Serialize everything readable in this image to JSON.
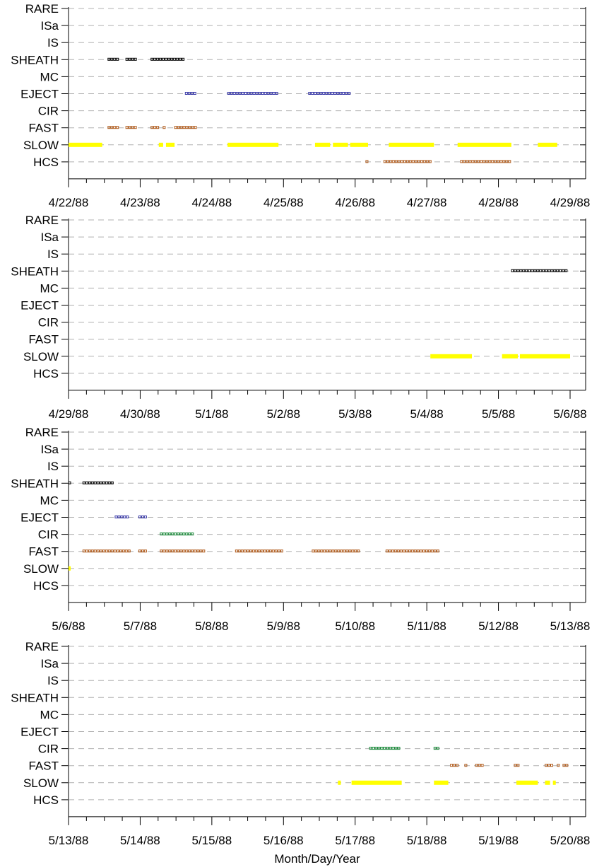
{
  "xlabel": "Month/Day/Year",
  "colors": {
    "SHEATH": "#000000",
    "EJECT": "#3a3aa8",
    "CIR": "#1a8a3a",
    "FAST": "#b05a1a",
    "SLOW": "#ffff00",
    "HCS": "#b05a1a",
    "grid": "#b0b0b0"
  },
  "chart_data": [
    {
      "type": "timeline",
      "categories": [
        "RARE",
        "ISa",
        "IS",
        "SHEATH",
        "MC",
        "EJECT",
        "CIR",
        "FAST",
        "SLOW",
        "HCS"
      ],
      "x_tick_labels": [
        "4/22/88",
        "4/23/88",
        "4/24/88",
        "4/25/88",
        "4/26/88",
        "4/27/88",
        "4/28/88",
        "4/29/88"
      ],
      "xlim_days": [
        0,
        7
      ],
      "events": [
        {
          "category": "SHEATH",
          "intervals": [
            [
              0.55,
              0.72
            ],
            [
              0.8,
              0.97
            ],
            [
              1.15,
              1.65
            ]
          ]
        },
        {
          "category": "EJECT",
          "intervals": [
            [
              1.63,
              1.81
            ],
            [
              2.22,
              2.93
            ],
            [
              3.35,
              3.98
            ]
          ]
        },
        {
          "category": "FAST",
          "intervals": [
            [
              0.55,
              0.72
            ],
            [
              0.8,
              0.97
            ],
            [
              1.15,
              1.28
            ],
            [
              1.32,
              1.37
            ],
            [
              1.48,
              1.81
            ]
          ]
        },
        {
          "category": "SLOW",
          "intervals": [
            [
              0.0,
              0.47
            ],
            [
              1.26,
              1.32
            ],
            [
              1.36,
              1.48
            ],
            [
              2.22,
              2.93
            ],
            [
              3.44,
              3.65
            ],
            [
              3.69,
              3.9
            ],
            [
              3.93,
              4.18
            ],
            [
              4.47,
              5.1
            ],
            [
              5.43,
              6.18
            ],
            [
              6.55,
              6.82
            ]
          ]
        },
        {
          "category": "HCS",
          "intervals": [
            [
              4.15,
              4.2
            ],
            [
              4.4,
              5.1
            ],
            [
              5.47,
              6.18
            ]
          ]
        }
      ]
    },
    {
      "type": "timeline",
      "categories": [
        "RARE",
        "ISa",
        "IS",
        "SHEATH",
        "MC",
        "EJECT",
        "CIR",
        "FAST",
        "SLOW",
        "HCS"
      ],
      "x_tick_labels": [
        "4/29/88",
        "4/30/88",
        "5/1/88",
        "5/2/88",
        "5/3/88",
        "5/4/88",
        "5/5/88",
        "5/6/88"
      ],
      "xlim_days": [
        0,
        7
      ],
      "events": [
        {
          "category": "SHEATH",
          "intervals": [
            [
              6.18,
              7.0
            ]
          ]
        },
        {
          "category": "SLOW",
          "intervals": [
            [
              5.05,
              5.63
            ],
            [
              6.05,
              6.27
            ],
            [
              6.3,
              7.0
            ]
          ]
        }
      ]
    },
    {
      "type": "timeline",
      "categories": [
        "RARE",
        "ISa",
        "IS",
        "SHEATH",
        "MC",
        "EJECT",
        "CIR",
        "FAST",
        "SLOW",
        "HCS"
      ],
      "x_tick_labels": [
        "5/6/88",
        "5/7/88",
        "5/8/88",
        "5/9/88",
        "5/10/88",
        "5/11/88",
        "5/12/88",
        "5/13/88"
      ],
      "xlim_days": [
        0,
        7
      ],
      "events": [
        {
          "category": "SHEATH",
          "intervals": [
            [
              0.0,
              0.02
            ],
            [
              0.2,
              0.64
            ]
          ]
        },
        {
          "category": "EJECT",
          "intervals": [
            [
              0.65,
              0.88
            ],
            [
              0.98,
              1.13
            ]
          ]
        },
        {
          "category": "CIR",
          "intervals": [
            [
              1.28,
              1.78
            ]
          ]
        },
        {
          "category": "FAST",
          "intervals": [
            [
              0.2,
              0.88
            ],
            [
              0.98,
              1.13
            ],
            [
              1.28,
              1.93
            ],
            [
              2.33,
              3.03
            ],
            [
              3.4,
              4.1
            ],
            [
              4.43,
              5.18
            ]
          ]
        },
        {
          "category": "SLOW",
          "intervals": [
            [
              0.0,
              0.02
            ]
          ]
        }
      ]
    },
    {
      "type": "timeline",
      "categories": [
        "RARE",
        "ISa",
        "IS",
        "SHEATH",
        "MC",
        "EJECT",
        "CIR",
        "FAST",
        "SLOW",
        "HCS"
      ],
      "x_tick_labels": [
        "5/13/88",
        "5/14/88",
        "5/15/88",
        "5/16/88",
        "5/17/88",
        "5/18/88",
        "5/19/88",
        "5/20/88"
      ],
      "xlim_days": [
        0,
        7
      ],
      "events": [
        {
          "category": "CIR",
          "intervals": [
            [
              4.2,
              4.65
            ],
            [
              5.1,
              5.2
            ]
          ]
        },
        {
          "category": "FAST",
          "intervals": [
            [
              5.33,
              5.45
            ],
            [
              5.53,
              5.6
            ],
            [
              5.68,
              5.8
            ],
            [
              6.22,
              6.3
            ],
            [
              6.65,
              6.77
            ],
            [
              6.82,
              6.85
            ],
            [
              6.9,
              7.1
            ]
          ]
        },
        {
          "category": "SLOW",
          "intervals": [
            [
              3.76,
              3.8
            ],
            [
              3.95,
              4.65
            ],
            [
              5.1,
              5.3
            ],
            [
              6.25,
              6.55
            ],
            [
              6.65,
              6.72
            ],
            [
              6.76,
              6.8
            ]
          ]
        }
      ]
    }
  ]
}
